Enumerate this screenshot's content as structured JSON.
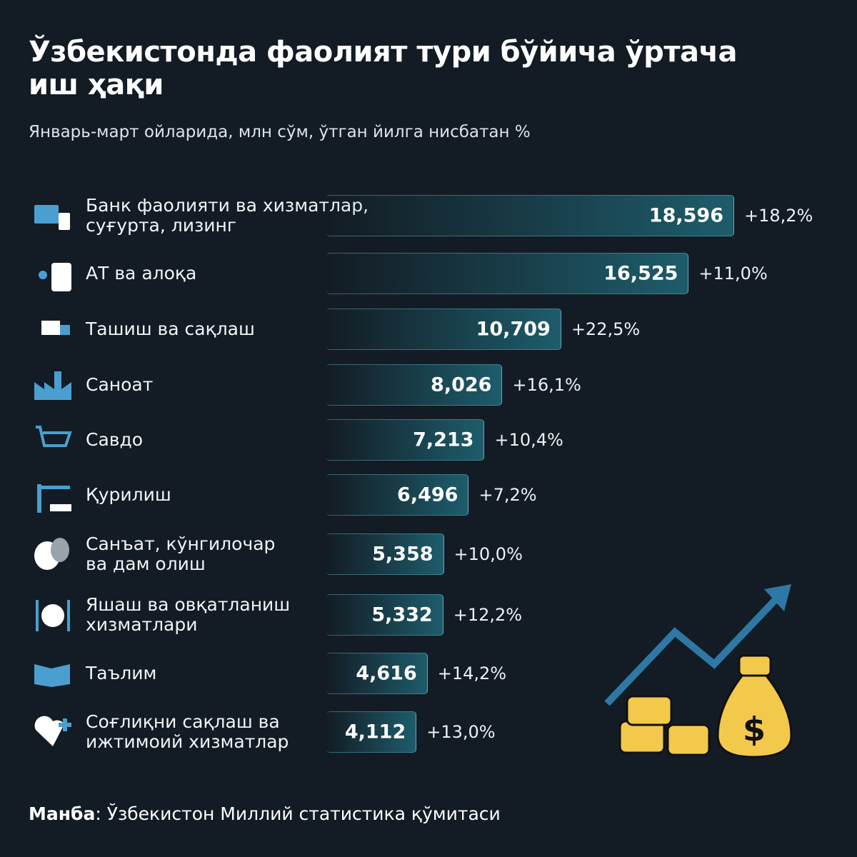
{
  "chart_data": {
    "type": "bar",
    "title": "Ўзбекистонда фаолият тури бўйича ўртача\nиш ҳақи",
    "subtitle": "Январь-март ойларида, млн сўм, ўтган йилга нисбатан %",
    "categories": [
      "Банк фаолияти ва хизматлар,\nсуғурта, лизинг",
      "АТ ва алоқа",
      "Ташиш ва сақлаш",
      "Саноат",
      "Савдо",
      "Қурилиш",
      "Санъат, кўнгилочар\nва дам олиш",
      "Яшаш ва овқатланиш\nхизматлари",
      "Таълим",
      "Соғлиқни сақлаш ва\nижтимоий хизматлар"
    ],
    "values": [
      18596,
      16525,
      10709,
      8026,
      7213,
      6496,
      5358,
      5332,
      4616,
      4112
    ],
    "value_labels": [
      "18,596",
      "16,525",
      "10,709",
      "8,026",
      "7,213",
      "6,496",
      "5,358",
      "5,332",
      "4,616",
      "4,112"
    ],
    "changes": [
      18.2,
      11.0,
      22.5,
      16.1,
      10.4,
      7.2,
      10.0,
      12.2,
      14.2,
      13.0
    ],
    "change_labels": [
      "+18,2%",
      "+11,0%",
      "+22,5%",
      "+16,1%",
      "+10,4%",
      "+7,2%",
      "+10,0%",
      "+12,2%",
      "+14,2%",
      "+13,0%"
    ],
    "color": "#1e5d6c",
    "source_label": "Манба",
    "source": ": Ўзбекистон Миллий статистика қўмитаси"
  }
}
